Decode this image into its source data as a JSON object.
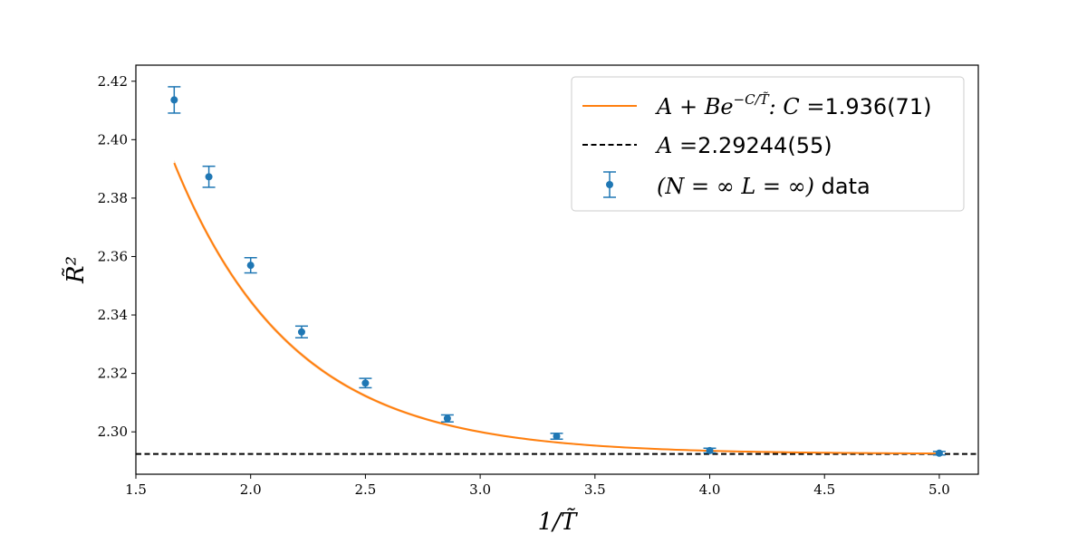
{
  "chart_data": {
    "type": "scatter",
    "xlabel": "1/T̃",
    "ylabel": "R̃²",
    "xlim": [
      1.5,
      5.17
    ],
    "ylim": [
      2.2855,
      2.4255
    ],
    "xticks": [
      "1.5",
      "2.0",
      "2.5",
      "3.0",
      "3.5",
      "4.0",
      "4.5",
      "5.0"
    ],
    "yticks": [
      "2.30",
      "2.32",
      "2.34",
      "2.36",
      "2.38",
      "2.40",
      "2.42"
    ],
    "grid": false,
    "legend_position": "top-right",
    "series": [
      {
        "name": "(N = ∞ L = ∞) data",
        "kind": "errorbar",
        "color": "#1f77b4",
        "points": [
          {
            "x": 1.667,
            "y": 2.4136,
            "err": 0.0045
          },
          {
            "x": 1.818,
            "y": 2.3873,
            "err": 0.0036
          },
          {
            "x": 2.0,
            "y": 2.357,
            "err": 0.0026
          },
          {
            "x": 2.222,
            "y": 2.3342,
            "err": 0.002
          },
          {
            "x": 2.5,
            "y": 2.3167,
            "err": 0.0016
          },
          {
            "x": 2.857,
            "y": 2.3046,
            "err": 0.0012
          },
          {
            "x": 3.333,
            "y": 2.2985,
            "err": 0.001
          },
          {
            "x": 4.0,
            "y": 2.2936,
            "err": 0.0008
          },
          {
            "x": 5.0,
            "y": 2.2927,
            "err": 0.0006
          }
        ]
      },
      {
        "name": "A + Be^{−C/T̃}: C =1.936(71)",
        "kind": "fit",
        "color": "#ff7f0e",
        "band_color": "#f9c79b",
        "x_range": [
          1.667,
          5.0
        ],
        "A": 2.29244,
        "B": 2.51,
        "C": 1.936
      },
      {
        "name": "A =2.29244(55)",
        "kind": "hline",
        "color": "#000000",
        "y": 2.29244
      }
    ]
  },
  "legend": {
    "fit_prefix": "A + Be",
    "fit_exponent": "−C/T̃",
    "fit_mid": ": C =",
    "fit_value": "1.936(71)",
    "hline_prefix": "A =",
    "hline_value": "2.29244(55)",
    "data_math": "(N = ∞ L = ∞)",
    "data_text": " data"
  },
  "colors": {
    "data": "#1f77b4",
    "fit": "#ff7f0e",
    "band": "#f9c79b",
    "hline": "#000000",
    "legend_border": "#cccccc"
  }
}
